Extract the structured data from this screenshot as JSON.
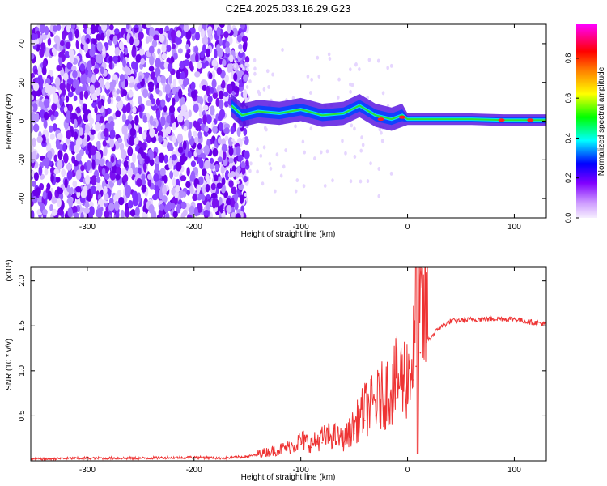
{
  "title": "C2E4.2025.033.16.29.G23",
  "chart_data": [
    {
      "type": "heatmap",
      "xlabel": "Height of straight line (km)",
      "ylabel": "Frequency (Hz)",
      "xlim": [
        -353,
        130
      ],
      "ylim": [
        -50,
        50
      ],
      "xticks": [
        -300,
        -200,
        -100,
        0,
        100
      ],
      "yticks": [
        -40,
        -20,
        0,
        20,
        40
      ],
      "xtick_labels": [
        "-300",
        "-200",
        "-100",
        "0",
        "100"
      ],
      "ytick_labels": [
        "-40",
        "-20",
        "0",
        "20",
        "40"
      ],
      "colorbar": {
        "label": "Normalized spectral amplitude",
        "range": [
          0,
          0.97
        ],
        "ticks": [
          0,
          0.2,
          0.4,
          0.6,
          0.8
        ],
        "tick_labels": [
          "0.0",
          "0.2",
          "0.4",
          "0.6",
          "0.8"
        ],
        "colors": [
          "#f0e6ff",
          "#cc99ff",
          "#8000ff",
          "#0000ff",
          "#00ffff",
          "#00ff00",
          "#ffff00",
          "#ff8000",
          "#ff0000",
          "#ff00ff"
        ]
      },
      "ridge": [
        {
          "x": -165,
          "y": 8
        },
        {
          "x": -155,
          "y": 3
        },
        {
          "x": -140,
          "y": 5
        },
        {
          "x": -120,
          "y": 4
        },
        {
          "x": -100,
          "y": 6
        },
        {
          "x": -80,
          "y": 3
        },
        {
          "x": -60,
          "y": 4
        },
        {
          "x": -45,
          "y": 8
        },
        {
          "x": -30,
          "y": 3
        },
        {
          "x": -15,
          "y": 1
        },
        {
          "x": -5,
          "y": 3
        },
        {
          "x": 0,
          "y": 1
        },
        {
          "x": 30,
          "y": 1
        },
        {
          "x": 60,
          "y": 1
        },
        {
          "x": 90,
          "y": 0.5
        },
        {
          "x": 130,
          "y": 0.5
        }
      ],
      "noise_region": {
        "x": [
          -353,
          -160
        ],
        "y": [
          -50,
          50
        ]
      }
    },
    {
      "type": "line",
      "xlabel": "Height of straight line (km)",
      "ylabel": "SNR (10 * v/v)",
      "scale_label": "(x10⁴)",
      "xlim": [
        -353,
        130
      ],
      "ylim": [
        0,
        2.15
      ],
      "xticks": [
        -300,
        -200,
        -100,
        0,
        100
      ],
      "yticks": [
        0.5,
        1.0,
        1.5,
        2.0
      ],
      "xtick_labels": [
        "-300",
        "-200",
        "-100",
        "0",
        "100"
      ],
      "ytick_labels": [
        "0.5",
        "1.0",
        "1.5",
        "2.0"
      ],
      "color": "#ee3333",
      "x": [
        -353,
        -300,
        -250,
        -200,
        -170,
        -150,
        -130,
        -110,
        -100,
        -90,
        -80,
        -70,
        -60,
        -50,
        -40,
        -30,
        -20,
        -10,
        0,
        5,
        8,
        12,
        20,
        30,
        40,
        60,
        80,
        100,
        110,
        130
      ],
      "y": [
        0.02,
        0.03,
        0.03,
        0.04,
        0.03,
        0.05,
        0.08,
        0.12,
        0.18,
        0.15,
        0.2,
        0.22,
        0.18,
        0.3,
        0.45,
        0.5,
        0.6,
        0.7,
        0.75,
        0.9,
        1.05,
        1.2,
        1.35,
        1.48,
        1.55,
        1.57,
        1.58,
        1.58,
        1.55,
        1.52
      ]
    }
  ]
}
